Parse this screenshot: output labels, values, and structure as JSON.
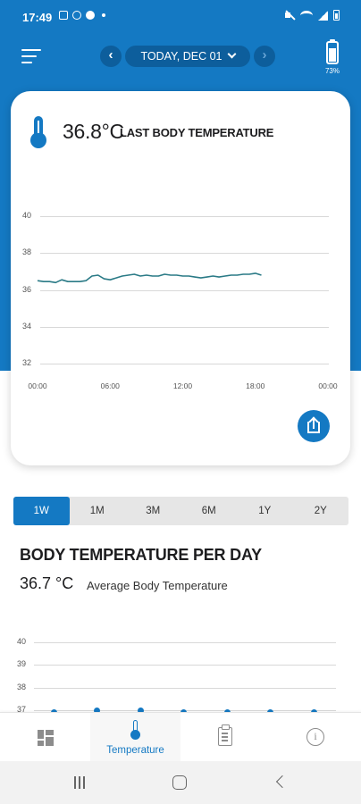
{
  "status_bar": {
    "time": "17:49",
    "icons": [
      "gallery-notification-icon",
      "location-notification-icon",
      "app-notification-icon",
      "more-dot-icon",
      "mute-icon",
      "wifi-icon",
      "signal-icon",
      "battery-icon"
    ]
  },
  "header": {
    "menu_icon": "hamburger-menu-icon",
    "prev_icon": "chevron-left-icon",
    "next_icon": "chevron-right-icon",
    "date_label": "TODAY, DEC 01",
    "device_icon": "thermometer-device-battery-icon",
    "device_battery": "73%",
    "device_battery_level": 0.73
  },
  "card": {
    "last_temp": "36.8°C",
    "last_label": "LAST BODY TEMPERATURE",
    "share_icon": "share-icon"
  },
  "chart_data": [
    {
      "type": "line",
      "title": "",
      "xlabel": "",
      "ylabel": "",
      "y_ticks": [
        "40",
        "38",
        "36",
        "34",
        "32"
      ],
      "x_ticks": [
        "00:00",
        "06:00",
        "12:00",
        "18:00",
        "00:00"
      ],
      "ylim": [
        32,
        40
      ],
      "xlim": [
        0,
        24
      ],
      "grid": true,
      "color": "#2a7a86",
      "series": [
        {
          "x": [
            0,
            0.5,
            1,
            1.5,
            2,
            2.5,
            3,
            3.5,
            4,
            4.5,
            5,
            5.5,
            6,
            6.5,
            7,
            7.5,
            8,
            8.5,
            9,
            9.5,
            10,
            10.5,
            11,
            11.5,
            12,
            12.5,
            13,
            13.5,
            14,
            14.5,
            15,
            15.5,
            16,
            16.5,
            17,
            17.5,
            18,
            18.5
          ],
          "y": [
            36.5,
            36.45,
            36.45,
            36.4,
            36.55,
            36.45,
            36.45,
            36.45,
            36.5,
            36.75,
            36.8,
            36.6,
            36.55,
            36.65,
            36.75,
            36.8,
            36.85,
            36.75,
            36.8,
            36.75,
            36.75,
            36.85,
            36.8,
            36.8,
            36.75,
            36.75,
            36.7,
            36.65,
            36.7,
            36.75,
            36.7,
            36.75,
            36.8,
            36.8,
            36.85,
            36.85,
            36.9,
            36.8
          ]
        }
      ]
    },
    {
      "type": "scatter",
      "title": "BODY TEMPERATURE PER DAY",
      "xlabel": "",
      "ylabel": "",
      "y_ticks": [
        "40",
        "39",
        "38",
        "37"
      ],
      "ylim": [
        37,
        40
      ],
      "grid": true,
      "color": "#1479c3",
      "series": [
        {
          "x": [
            1,
            2,
            3,
            4,
            5,
            6,
            7
          ],
          "y": [
            36.9,
            37.0,
            37.0,
            36.9,
            36.9,
            36.9,
            36.9
          ]
        }
      ]
    }
  ],
  "period_tabs": [
    {
      "label": "1W",
      "active": true
    },
    {
      "label": "1M",
      "active": false
    },
    {
      "label": "3M",
      "active": false
    },
    {
      "label": "6M",
      "active": false
    },
    {
      "label": "1Y",
      "active": false
    },
    {
      "label": "2Y",
      "active": false
    }
  ],
  "summary": {
    "title": "BODY TEMPERATURE PER DAY",
    "avg_value": "36.7 °C",
    "avg_label": "Average Body Temperature"
  },
  "bottom_nav": [
    {
      "label": "",
      "icon": "dashboard-icon",
      "active": false
    },
    {
      "label": "Temperature",
      "icon": "thermometer-icon",
      "active": true
    },
    {
      "label": "",
      "icon": "clipboard-icon",
      "active": false
    },
    {
      "label": "",
      "icon": "info-icon",
      "active": false
    }
  ],
  "system_nav": {
    "icons": [
      "recent-apps-icon",
      "home-icon",
      "back-icon"
    ]
  },
  "colors": {
    "primary": "#1479c3",
    "primary_dark": "#0d5e9c",
    "chart_line": "#2a7a86"
  }
}
